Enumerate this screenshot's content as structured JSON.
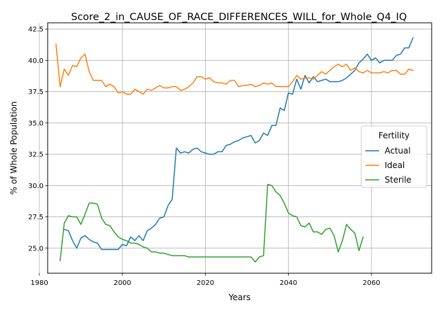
{
  "chart_data": {
    "type": "line",
    "title": "Score_2_in_CAUSE_OF_RACE_DIFFERENCES_WILL_for_Whole_Q4_IQ",
    "xlabel": "Years",
    "ylabel": "% of Whole Population",
    "xlim": [
      1982,
      2074.5
    ],
    "ylim": [
      23.0,
      43.0
    ],
    "x_ticks": [
      1980,
      2000,
      2020,
      2040,
      2060
    ],
    "y_ticks": [
      25.0,
      27.5,
      30.0,
      32.5,
      35.0,
      37.5,
      40.0,
      42.5
    ],
    "grid": true,
    "legend": {
      "title": "Fertility",
      "placement": "center-right"
    },
    "series": [
      {
        "name": "Actual",
        "color": "#1f77b4",
        "points": [
          [
            1986,
            26.5
          ],
          [
            1987,
            26.4
          ],
          [
            1988,
            25.6
          ],
          [
            1989,
            25.0
          ],
          [
            1990,
            25.8
          ],
          [
            1991,
            26.0
          ],
          [
            1992,
            25.7
          ],
          [
            1993,
            25.5
          ],
          [
            1994,
            25.4
          ],
          [
            1995,
            24.9
          ],
          [
            1996,
            24.9
          ],
          [
            1997,
            24.9
          ],
          [
            1998,
            24.9
          ],
          [
            1999,
            24.9
          ],
          [
            2000,
            25.3
          ],
          [
            2001,
            25.2
          ],
          [
            2002,
            25.9
          ],
          [
            2003,
            25.6
          ],
          [
            2004,
            26.0
          ],
          [
            2005,
            25.6
          ],
          [
            2006,
            26.4
          ],
          [
            2007,
            26.6
          ],
          [
            2008,
            26.9
          ],
          [
            2009,
            27.4
          ],
          [
            2010,
            27.5
          ],
          [
            2011,
            28.4
          ],
          [
            2012,
            28.9
          ],
          [
            2013,
            33.0
          ],
          [
            2014,
            32.6
          ],
          [
            2015,
            32.7
          ],
          [
            2016,
            32.6
          ],
          [
            2017,
            32.9
          ],
          [
            2018,
            33.0
          ],
          [
            2019,
            32.7
          ],
          [
            2020,
            32.6
          ],
          [
            2021,
            32.5
          ],
          [
            2022,
            32.5
          ],
          [
            2023,
            32.7
          ],
          [
            2024,
            32.7
          ],
          [
            2025,
            33.2
          ],
          [
            2026,
            33.3
          ],
          [
            2027,
            33.5
          ],
          [
            2028,
            33.6
          ],
          [
            2029,
            33.8
          ],
          [
            2030,
            33.9
          ],
          [
            2031,
            34.0
          ],
          [
            2032,
            33.4
          ],
          [
            2033,
            33.6
          ],
          [
            2034,
            34.2
          ],
          [
            2035,
            34.0
          ],
          [
            2036,
            34.8
          ],
          [
            2037,
            34.8
          ],
          [
            2038,
            36.2
          ],
          [
            2039,
            36.0
          ],
          [
            2040,
            37.4
          ],
          [
            2041,
            37.3
          ],
          [
            2042,
            38.5
          ],
          [
            2043,
            37.7
          ],
          [
            2044,
            38.8
          ],
          [
            2045,
            38.2
          ],
          [
            2046,
            38.7
          ],
          [
            2047,
            38.3
          ],
          [
            2048,
            38.4
          ],
          [
            2049,
            38.5
          ],
          [
            2050,
            38.3
          ],
          [
            2051,
            38.3
          ],
          [
            2052,
            38.3
          ],
          [
            2053,
            38.4
          ],
          [
            2054,
            38.6
          ],
          [
            2055,
            38.9
          ],
          [
            2056,
            39.2
          ],
          [
            2057,
            39.8
          ],
          [
            2058,
            40.1
          ],
          [
            2059,
            40.5
          ],
          [
            2060,
            40.0
          ],
          [
            2061,
            40.2
          ],
          [
            2062,
            39.8
          ],
          [
            2063,
            40.0
          ],
          [
            2064,
            40.0
          ],
          [
            2065,
            40.0
          ],
          [
            2066,
            40.4
          ],
          [
            2067,
            40.5
          ],
          [
            2068,
            41.0
          ],
          [
            2069,
            41.0
          ],
          [
            2070,
            41.8
          ]
        ]
      },
      {
        "name": "Ideal",
        "color": "#ff7f0e",
        "points": [
          [
            1984,
            41.3
          ],
          [
            1985,
            37.9
          ],
          [
            1986,
            39.3
          ],
          [
            1987,
            38.8
          ],
          [
            1988,
            39.6
          ],
          [
            1989,
            39.5
          ],
          [
            1990,
            40.2
          ],
          [
            1991,
            40.5
          ],
          [
            1992,
            39.1
          ],
          [
            1993,
            38.4
          ],
          [
            1994,
            38.4
          ],
          [
            1995,
            38.4
          ],
          [
            1996,
            37.9
          ],
          [
            1997,
            38.1
          ],
          [
            1998,
            37.9
          ],
          [
            1999,
            37.4
          ],
          [
            2000,
            37.5
          ],
          [
            2001,
            37.3
          ],
          [
            2002,
            37.3
          ],
          [
            2003,
            37.7
          ],
          [
            2004,
            37.5
          ],
          [
            2005,
            37.3
          ],
          [
            2006,
            37.7
          ],
          [
            2007,
            37.6
          ],
          [
            2008,
            37.8
          ],
          [
            2009,
            38.0
          ],
          [
            2010,
            37.8
          ],
          [
            2011,
            37.8
          ],
          [
            2012,
            37.9
          ],
          [
            2013,
            37.9
          ],
          [
            2014,
            37.6
          ],
          [
            2015,
            37.7
          ],
          [
            2016,
            37.9
          ],
          [
            2017,
            38.2
          ],
          [
            2018,
            38.7
          ],
          [
            2019,
            38.7
          ],
          [
            2020,
            38.5
          ],
          [
            2021,
            38.6
          ],
          [
            2022,
            38.3
          ],
          [
            2023,
            38.2
          ],
          [
            2024,
            38.2
          ],
          [
            2025,
            38.1
          ],
          [
            2026,
            38.4
          ],
          [
            2027,
            38.4
          ],
          [
            2028,
            37.9
          ],
          [
            2029,
            38.0
          ],
          [
            2030,
            38.0
          ],
          [
            2031,
            38.1
          ],
          [
            2032,
            37.9
          ],
          [
            2033,
            38.0
          ],
          [
            2034,
            38.2
          ],
          [
            2035,
            38.1
          ],
          [
            2036,
            38.2
          ],
          [
            2037,
            37.9
          ],
          [
            2038,
            37.9
          ],
          [
            2039,
            37.9
          ],
          [
            2040,
            37.9
          ],
          [
            2041,
            38.3
          ],
          [
            2042,
            38.8
          ],
          [
            2043,
            38.5
          ],
          [
            2044,
            38.6
          ],
          [
            2045,
            38.6
          ],
          [
            2046,
            38.5
          ],
          [
            2047,
            38.8
          ],
          [
            2048,
            39.1
          ],
          [
            2049,
            38.9
          ],
          [
            2050,
            39.2
          ],
          [
            2051,
            39.5
          ],
          [
            2052,
            39.7
          ],
          [
            2053,
            39.5
          ],
          [
            2054,
            39.7
          ],
          [
            2055,
            39.2
          ],
          [
            2056,
            39.4
          ],
          [
            2057,
            39.1
          ],
          [
            2058,
            39.0
          ],
          [
            2059,
            39.2
          ],
          [
            2060,
            39.0
          ],
          [
            2061,
            39.0
          ],
          [
            2062,
            39.0
          ],
          [
            2063,
            39.1
          ],
          [
            2064,
            39.0
          ],
          [
            2065,
            39.2
          ],
          [
            2066,
            39.2
          ],
          [
            2067,
            38.9
          ],
          [
            2068,
            38.9
          ],
          [
            2069,
            39.3
          ],
          [
            2070,
            39.2
          ]
        ]
      },
      {
        "name": "Sterile",
        "color": "#2ca02c",
        "points": [
          [
            1985,
            24.0
          ],
          [
            1986,
            27.0
          ],
          [
            1987,
            27.6
          ],
          [
            1988,
            27.5
          ],
          [
            1989,
            27.5
          ],
          [
            1990,
            26.9
          ],
          [
            1991,
            27.7
          ],
          [
            1992,
            28.6
          ],
          [
            1993,
            28.6
          ],
          [
            1994,
            28.5
          ],
          [
            1995,
            27.4
          ],
          [
            1996,
            26.9
          ],
          [
            1997,
            26.8
          ],
          [
            1998,
            26.3
          ],
          [
            1999,
            25.9
          ],
          [
            2000,
            25.7
          ],
          [
            2001,
            25.6
          ],
          [
            2002,
            25.4
          ],
          [
            2003,
            25.4
          ],
          [
            2004,
            25.3
          ],
          [
            2005,
            25.1
          ],
          [
            2006,
            25.0
          ],
          [
            2007,
            24.7
          ],
          [
            2008,
            24.7
          ],
          [
            2009,
            24.6
          ],
          [
            2010,
            24.6
          ],
          [
            2011,
            24.5
          ],
          [
            2012,
            24.4
          ],
          [
            2013,
            24.4
          ],
          [
            2014,
            24.4
          ],
          [
            2015,
            24.4
          ],
          [
            2016,
            24.3
          ],
          [
            2017,
            24.3
          ],
          [
            2018,
            24.3
          ],
          [
            2019,
            24.3
          ],
          [
            2020,
            24.3
          ],
          [
            2021,
            24.3
          ],
          [
            2022,
            24.3
          ],
          [
            2023,
            24.3
          ],
          [
            2024,
            24.3
          ],
          [
            2025,
            24.3
          ],
          [
            2026,
            24.3
          ],
          [
            2027,
            24.3
          ],
          [
            2028,
            24.3
          ],
          [
            2029,
            24.3
          ],
          [
            2030,
            24.3
          ],
          [
            2031,
            24.3
          ],
          [
            2032,
            23.9
          ],
          [
            2033,
            24.3
          ],
          [
            2034,
            24.4
          ],
          [
            2035,
            30.1
          ],
          [
            2036,
            30.0
          ],
          [
            2037,
            29.5
          ],
          [
            2038,
            29.2
          ],
          [
            2039,
            28.6
          ],
          [
            2040,
            27.8
          ],
          [
            2041,
            27.6
          ],
          [
            2042,
            27.5
          ],
          [
            2043,
            26.8
          ],
          [
            2044,
            26.7
          ],
          [
            2045,
            27.0
          ],
          [
            2046,
            26.3
          ],
          [
            2047,
            26.3
          ],
          [
            2048,
            26.1
          ],
          [
            2049,
            26.5
          ],
          [
            2050,
            26.6
          ],
          [
            2051,
            26.0
          ],
          [
            2052,
            24.7
          ],
          [
            2053,
            25.6
          ],
          [
            2054,
            26.9
          ],
          [
            2055,
            26.5
          ],
          [
            2056,
            26.2
          ],
          [
            2057,
            24.8
          ],
          [
            2058,
            25.9
          ]
        ]
      }
    ]
  }
}
